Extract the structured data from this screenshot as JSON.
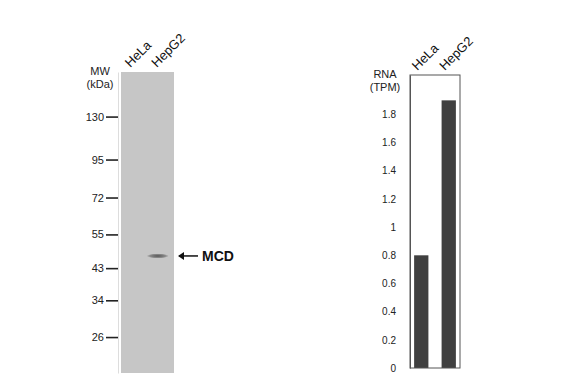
{
  "chart_data": [
    {
      "type": "blot",
      "y_label": [
        "MW",
        "(kDa)"
      ],
      "categories": [
        "HeLa",
        "HepG2"
      ],
      "values": [
        null,
        47
      ],
      "annotation": "MCD",
      "log": "y",
      "ylim": [
        20,
        180
      ],
      "yticks": [
        130,
        95,
        72,
        55,
        43,
        34,
        26
      ]
    },
    {
      "type": "bar",
      "y_label": [
        "RNA",
        "(TPM)"
      ],
      "categories": [
        "HeLa",
        "HepG2"
      ],
      "values": [
        0.8,
        1.9
      ],
      "color": "#404040",
      "ylim": [
        0,
        2.08
      ],
      "yticks": [
        0,
        0.2,
        0.4,
        0.6,
        0.8,
        1,
        1.2,
        1.4,
        1.6,
        1.8
      ]
    }
  ]
}
